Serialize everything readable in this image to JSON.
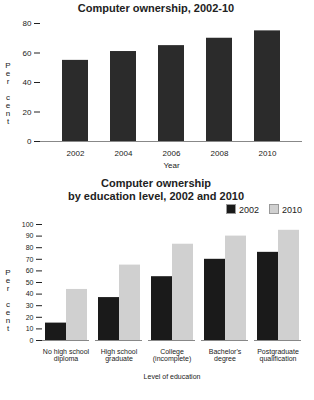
{
  "chart_data": [
    {
      "type": "bar",
      "title": "Computer ownership, 2002-10",
      "categories": [
        "2002",
        "2004",
        "2006",
        "2008",
        "2010"
      ],
      "values": [
        55,
        61,
        65,
        70,
        75
      ],
      "color": "#2b2b2b",
      "xlabel": "Year",
      "ylabel": "Per cent",
      "ylim": [
        0,
        80
      ],
      "yticks": [
        0,
        20,
        40,
        60,
        80
      ]
    },
    {
      "type": "bar",
      "title": "Computer ownership\nby education level, 2002 and 2010",
      "categories": [
        "No high school\ndiploma",
        "High school\ngraduate",
        "College\n(incomplete)",
        "Bachelor's\ndegree",
        "Postgraduate\nqualification"
      ],
      "series": [
        {
          "name": "2002",
          "color": "#1a1a1a",
          "values": [
            15,
            37,
            55,
            70,
            76
          ]
        },
        {
          "name": "2010",
          "color": "#d0d0d0",
          "values": [
            44,
            65,
            83,
            90,
            95
          ]
        }
      ],
      "xlabel": "Level of education",
      "ylabel": "Per cent",
      "ylim": [
        0,
        100
      ],
      "yticks": [
        0,
        10,
        20,
        30,
        40,
        50,
        60,
        70,
        80,
        90,
        100
      ],
      "legend": "right"
    }
  ]
}
